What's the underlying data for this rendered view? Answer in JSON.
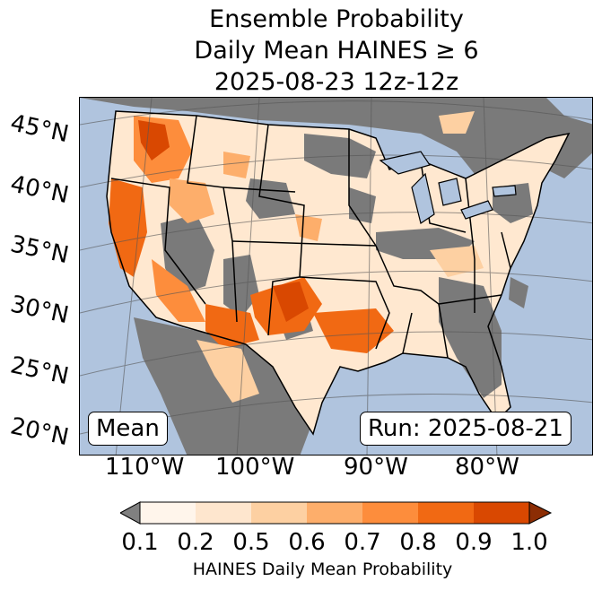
{
  "title": {
    "line1": "Ensemble Probability",
    "line2": "Daily Mean HAINES ≥ 6",
    "line3": "2025-08-23 12z-12z"
  },
  "map": {
    "lat_labels": [
      "45°N",
      "40°N",
      "35°N",
      "30°N",
      "25°N",
      "20°N"
    ],
    "lon_labels": [
      "110°W",
      "100°W",
      "90°W",
      "80°W"
    ],
    "mean_label": "Mean",
    "run_label": "Run: 2025-08-21",
    "colors": {
      "ocean": "#b0c4de",
      "no_data": "#7a7a7a",
      "border": "#000000"
    }
  },
  "colorbar": {
    "ticks": [
      "0.1",
      "0.2",
      "0.5",
      "0.6",
      "0.7",
      "0.8",
      "0.9",
      "1.0"
    ],
    "colors": [
      "#fff5eb",
      "#fee6ce",
      "#fdd0a2",
      "#fdae6b",
      "#fd8d3c",
      "#f16913",
      "#d94801"
    ],
    "under_color": "#808080",
    "over_color": "#8c2d04",
    "label": "HAINES Daily Mean Probability"
  }
}
